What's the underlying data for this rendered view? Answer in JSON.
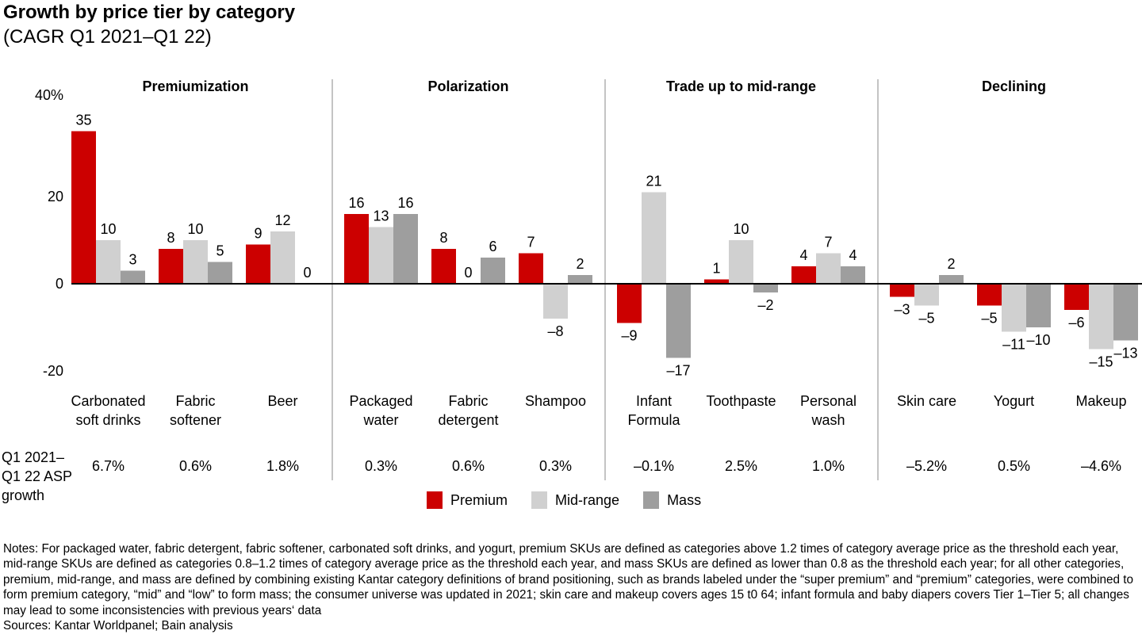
{
  "title": "Growth by price tier by category",
  "subtitle": "(CAGR  Q1 2021–Q1 22)",
  "notes": "Notes: For packaged water, fabric detergent, fabric softener, carbonated soft drinks, and yogurt, premium SKUs are defined as categories above 1.2 times of category average price as the threshold each year, mid-range SKUs are defined as categories 0.8–1.2 times of category average price as the threshold each year, and mass SKUs are defined as lower than 0.8 as the threshold each year; for all other categories, premium, mid-range, and mass are defined by combining existing Kantar category definitions of brand positioning, such as brands labeled under the “super premium” and “premium” categories, were combined to form premium category, “mid” and “low” to form mass; the consumer universe was updated in 2021; skin care and makeup covers ages 15 t0 64; infant formula and baby diapers covers Tier 1–Tier 5; all changes may lead to some inconsistencies with previous years‘ data",
  "sources": "Sources: Kantar Worldpanel; Bain analysis",
  "chart_data": {
    "type": "bar",
    "title": "Growth by price tier by category",
    "subtitle": "(CAGR  Q1 2021–Q1 22)",
    "ylim": [
      -20,
      40
    ],
    "yticks": [
      {
        "value": 40,
        "label": "40%"
      },
      {
        "value": 20,
        "label": "20"
      },
      {
        "value": 0,
        "label": "0"
      },
      {
        "value": -20,
        "label": "-20"
      }
    ],
    "grid": false,
    "legend_position": "bottom",
    "sections": [
      {
        "name": "Premiumization",
        "categories": [
          0,
          1,
          2
        ]
      },
      {
        "name": "Polarization",
        "categories": [
          3,
          4,
          5
        ]
      },
      {
        "name": "Trade up to mid-range",
        "categories": [
          6,
          7,
          8
        ]
      },
      {
        "name": "Declining",
        "categories": [
          9,
          10,
          11
        ]
      }
    ],
    "categories": [
      [
        "Carbonated",
        "soft drinks"
      ],
      [
        "Fabric",
        "softener"
      ],
      [
        "Beer"
      ],
      [
        "Packaged",
        "water"
      ],
      [
        "Fabric",
        "detergent"
      ],
      [
        "Shampoo"
      ],
      [
        "Infant",
        "Formula"
      ],
      [
        "Toothpaste"
      ],
      [
        "Personal",
        "wash"
      ],
      [
        "Skin care"
      ],
      [
        "Yogurt"
      ],
      [
        "Makeup"
      ]
    ],
    "series": [
      {
        "name": "Premium",
        "color": "#cc0000",
        "values": [
          35,
          8,
          9,
          16,
          8,
          7,
          -9,
          1,
          4,
          -3,
          -5,
          -6
        ]
      },
      {
        "name": "Mid-range",
        "color": "#d0d0d0",
        "values": [
          10,
          10,
          12,
          13,
          0,
          -8,
          21,
          10,
          7,
          -5,
          -11,
          -15
        ]
      },
      {
        "name": "Mass",
        "color": "#9e9e9e",
        "values": [
          3,
          5,
          0,
          16,
          6,
          2,
          -17,
          -2,
          4,
          2,
          -10,
          -13
        ]
      }
    ],
    "asp_label": [
      "Q1 2021–",
      "Q1 22 ASP",
      "growth"
    ],
    "asp_growth": [
      "6.7%",
      "0.6%",
      "1.8%",
      "0.3%",
      "0.6%",
      "0.3%",
      "–0.1%",
      "2.5%",
      "1.0%",
      "–5.2%",
      "0.5%",
      "–4.6%"
    ]
  }
}
